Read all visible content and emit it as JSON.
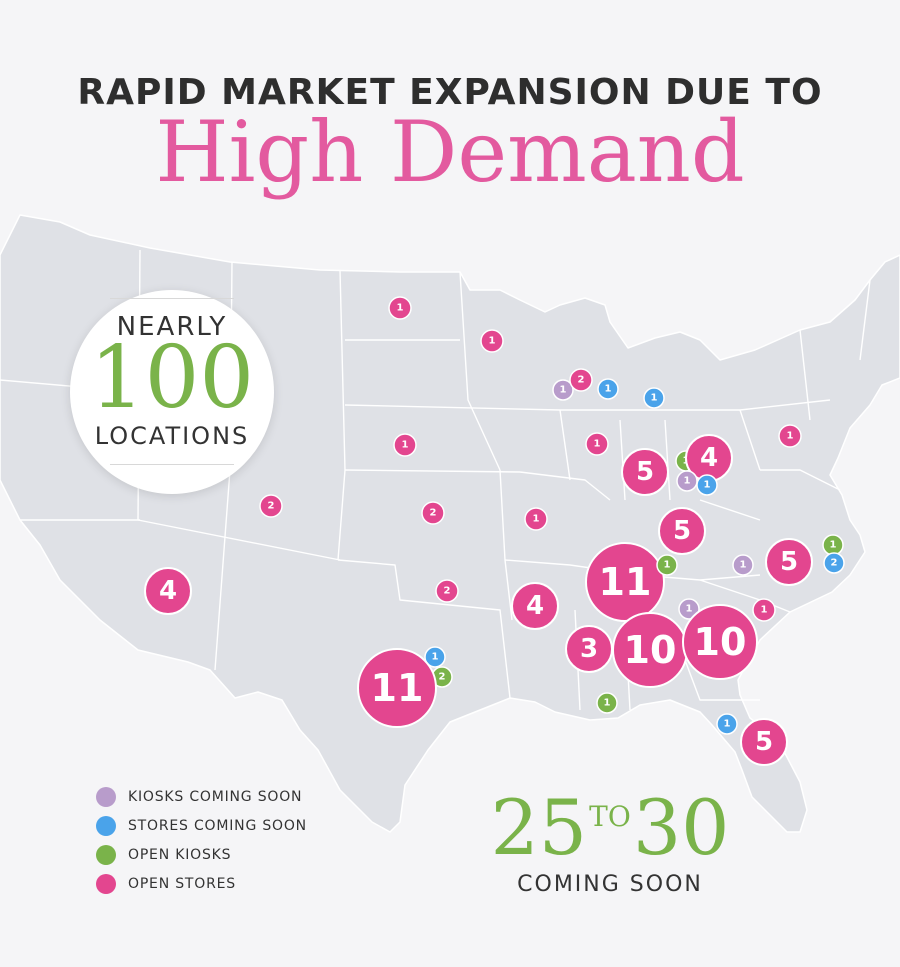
{
  "header": {
    "subtitle": "RAPID MARKET EXPANSION DUE TO",
    "title": "High Demand"
  },
  "badge": {
    "top": "NEARLY",
    "number": "100",
    "bottom": "LOCATIONS"
  },
  "coming_soon": {
    "from": "25",
    "to_word": "TO",
    "to": "30",
    "label": "COMING SOON"
  },
  "colors": {
    "kiosks_coming_soon": "#b89ccb",
    "stores_coming_soon": "#4aa3ea",
    "open_kiosks": "#7ab34a",
    "open_stores": "#e3468f"
  },
  "legend": [
    {
      "label": "KIOSKS COMING SOON",
      "kind": "kiosks_coming_soon"
    },
    {
      "label": "STORES COMING SOON",
      "kind": "stores_coming_soon"
    },
    {
      "label": "OPEN KIOSKS",
      "kind": "open_kiosks"
    },
    {
      "label": "OPEN STORES",
      "kind": "open_stores"
    }
  ],
  "markers": [
    {
      "kind": "open_stores",
      "count": 1,
      "region": "north-dakota"
    },
    {
      "kind": "open_stores",
      "count": 1,
      "region": "minnesota"
    },
    {
      "kind": "kiosks_coming_soon",
      "count": 1,
      "region": "wisconsin"
    },
    {
      "kind": "open_stores",
      "count": 2,
      "region": "wisconsin"
    },
    {
      "kind": "stores_coming_soon",
      "count": 1,
      "region": "wisconsin-east"
    },
    {
      "kind": "stores_coming_soon",
      "count": 1,
      "region": "michigan"
    },
    {
      "kind": "open_stores",
      "count": 1,
      "region": "nebraska"
    },
    {
      "kind": "open_stores",
      "count": 1,
      "region": "illinois"
    },
    {
      "kind": "open_stores",
      "count": 1,
      "region": "pennsylvania"
    },
    {
      "kind": "open_stores",
      "count": 5,
      "region": "indiana"
    },
    {
      "kind": "open_kiosks",
      "count": 1,
      "region": "ohio"
    },
    {
      "kind": "open_stores",
      "count": 4,
      "region": "ohio"
    },
    {
      "kind": "kiosks_coming_soon",
      "count": 1,
      "region": "ohio-south"
    },
    {
      "kind": "stores_coming_soon",
      "count": 1,
      "region": "ohio-south"
    },
    {
      "kind": "open_stores",
      "count": 2,
      "region": "colorado"
    },
    {
      "kind": "open_stores",
      "count": 2,
      "region": "kansas"
    },
    {
      "kind": "open_stores",
      "count": 1,
      "region": "missouri"
    },
    {
      "kind": "open_stores",
      "count": 5,
      "region": "kentucky"
    },
    {
      "kind": "open_kiosks",
      "count": 1,
      "region": "virginia-coast"
    },
    {
      "kind": "stores_coming_soon",
      "count": 2,
      "region": "virginia-coast"
    },
    {
      "kind": "open_stores",
      "count": 5,
      "region": "virginia"
    },
    {
      "kind": "kiosks_coming_soon",
      "count": 1,
      "region": "virginia-west"
    },
    {
      "kind": "open_stores",
      "count": 4,
      "region": "arizona"
    },
    {
      "kind": "open_stores",
      "count": 2,
      "region": "oklahoma"
    },
    {
      "kind": "open_stores",
      "count": 4,
      "region": "arkansas"
    },
    {
      "kind": "open_stores",
      "count": 11,
      "region": "tennessee"
    },
    {
      "kind": "open_kiosks",
      "count": 1,
      "region": "tennessee-east"
    },
    {
      "kind": "kiosks_coming_soon",
      "count": 1,
      "region": "georgia-north"
    },
    {
      "kind": "open_stores",
      "count": 1,
      "region": "south-carolina"
    },
    {
      "kind": "open_stores",
      "count": 3,
      "region": "mississippi"
    },
    {
      "kind": "open_stores",
      "count": 10,
      "region": "alabama"
    },
    {
      "kind": "open_stores",
      "count": 10,
      "region": "georgia"
    },
    {
      "kind": "stores_coming_soon",
      "count": 1,
      "region": "texas-east"
    },
    {
      "kind": "open_kiosks",
      "count": 2,
      "region": "texas-east"
    },
    {
      "kind": "open_stores",
      "count": 11,
      "region": "texas"
    },
    {
      "kind": "open_kiosks",
      "count": 1,
      "region": "louisiana"
    },
    {
      "kind": "stores_coming_soon",
      "count": 1,
      "region": "florida-north"
    },
    {
      "kind": "open_stores",
      "count": 5,
      "region": "florida"
    }
  ]
}
